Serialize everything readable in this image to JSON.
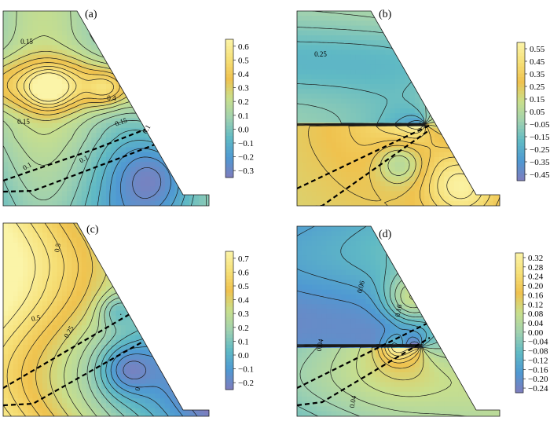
{
  "chart_data": [
    {
      "type": "heatmap",
      "panel_label": "(a)",
      "colorbar_ticks": [
        0.6,
        0.5,
        0.4,
        0.3,
        0.2,
        0.1,
        0.0,
        -0.1,
        -0.2,
        -0.3
      ],
      "colorbar_tick_labels": [
        "0.6",
        "0.5",
        "0.4",
        "0.3",
        "0.2",
        "0.1",
        "0.0",
        "−0.1",
        "−0.2",
        "−0.3"
      ],
      "value_range": [
        -0.35,
        0.65
      ],
      "contour_labels": [
        "0.15",
        "0.15",
        "0.4",
        "0.15",
        "0.1",
        "0.1",
        "0.1"
      ]
    },
    {
      "type": "heatmap",
      "panel_label": "(b)",
      "colorbar_ticks": [
        0.55,
        0.45,
        0.35,
        0.25,
        0.15,
        0.05,
        -0.05,
        -0.15,
        -0.25,
        -0.35,
        -0.45
      ],
      "colorbar_tick_labels": [
        "0.55",
        "0.45",
        "0.35",
        "0.25",
        "0.15",
        "0.05",
        "−0.05",
        "−0.15",
        "−0.25",
        "−0.35",
        "−0.45"
      ],
      "value_range": [
        -0.5,
        0.6
      ],
      "contour_labels": [
        "0.25"
      ]
    },
    {
      "type": "heatmap",
      "panel_label": "(c)",
      "colorbar_ticks": [
        0.7,
        0.6,
        0.5,
        0.4,
        0.3,
        0.2,
        0.1,
        0.0,
        -0.1,
        -0.2
      ],
      "colorbar_tick_labels": [
        "0.7",
        "0.6",
        "0.5",
        "0.4",
        "0.3",
        "0.2",
        "0.1",
        "0.0",
        "−0.1",
        "−0.2"
      ],
      "value_range": [
        -0.25,
        0.75
      ],
      "contour_labels": [
        "0.5",
        "0.5",
        "0.25",
        "0"
      ]
    },
    {
      "type": "heatmap",
      "panel_label": "(d)",
      "colorbar_ticks": [
        0.32,
        0.28,
        0.24,
        0.2,
        0.16,
        0.12,
        0.08,
        0.04,
        0.0,
        -0.04,
        -0.08,
        -0.12,
        -0.16,
        -0.2,
        -0.24
      ],
      "colorbar_tick_labels": [
        "0.32",
        "0.28",
        "0.24",
        "0.20",
        "0.16",
        "0.12",
        "0.08",
        "0.04",
        "0.00",
        "−0.04",
        "−0.08",
        "−0.12",
        "−0.16",
        "−0.20",
        "−0.24"
      ],
      "value_range": [
        -0.26,
        0.34
      ],
      "contour_labels": [
        "0.06",
        "0.16",
        "0.04",
        "0.04"
      ]
    }
  ],
  "colors": {
    "colormap": [
      "#7f7dbd",
      "#4f99d2",
      "#60bac4",
      "#9fd1b0",
      "#c9df8c",
      "#efc24e",
      "#f6e078",
      "#fbf4a8"
    ],
    "contour_line": "#1a1a1a",
    "dashed_line": "#000000"
  }
}
